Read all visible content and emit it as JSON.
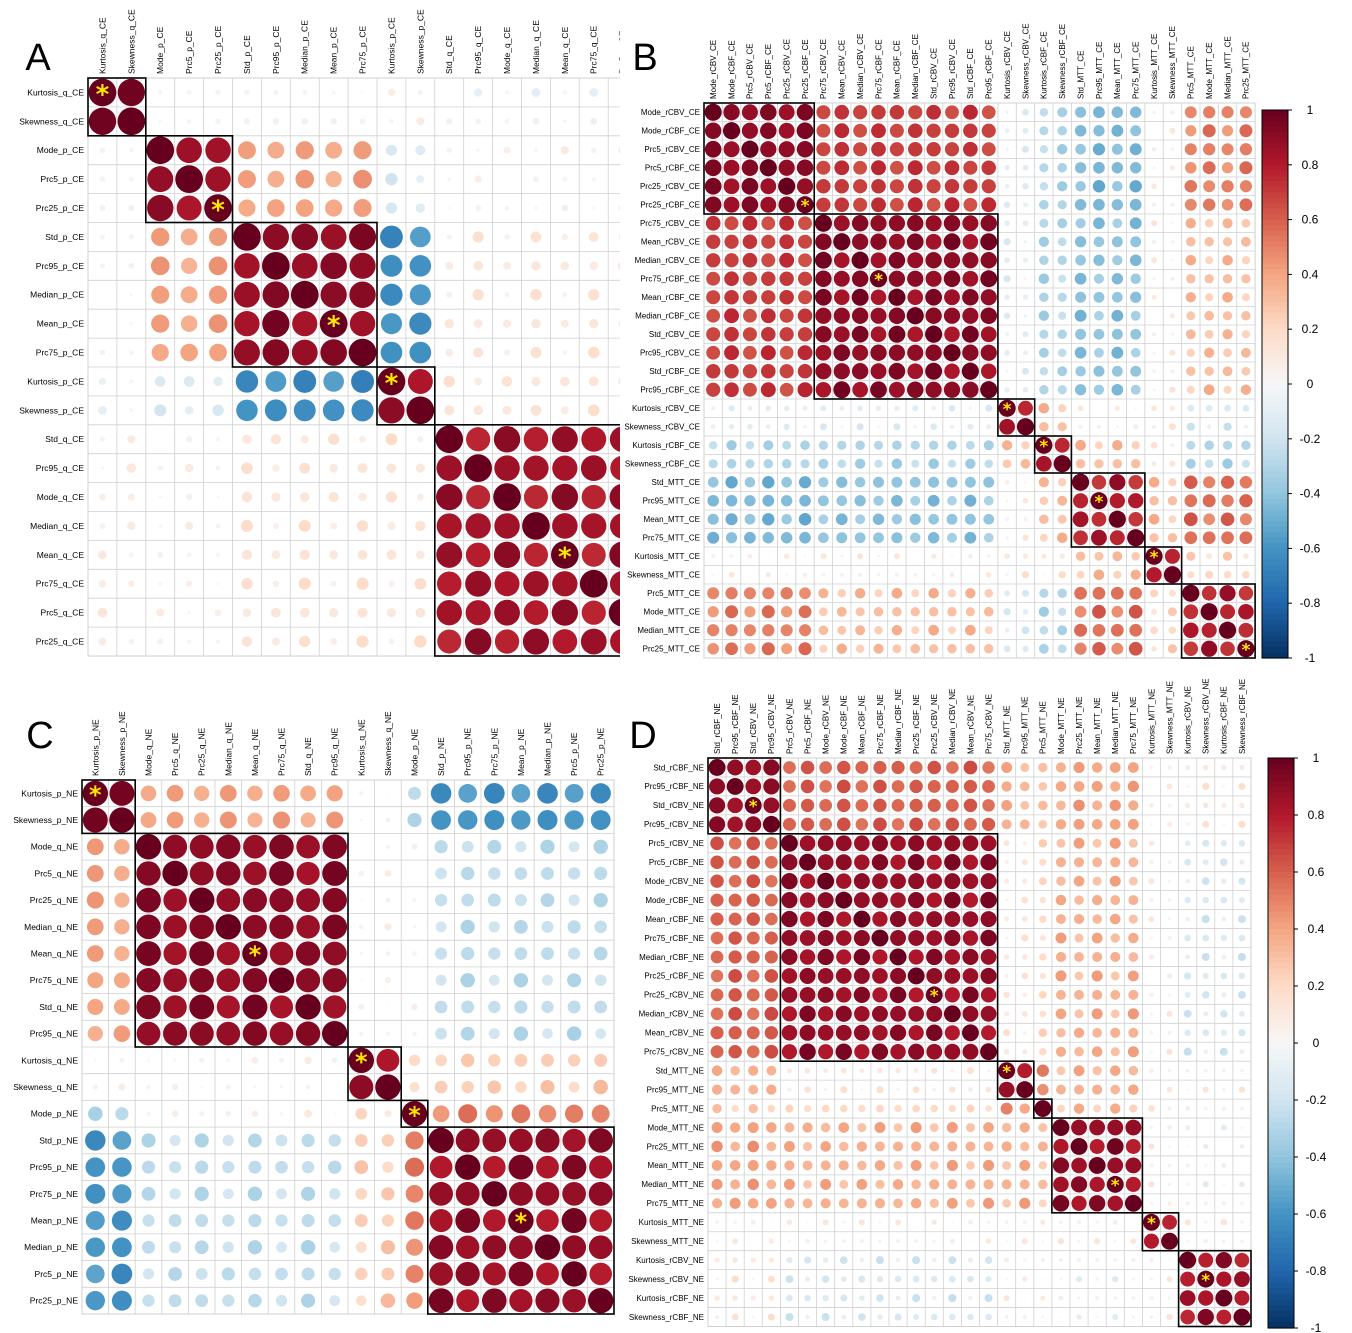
{
  "figure": {
    "colorbar": {
      "ticks": [
        "1",
        "0.8",
        "0.6",
        "0.4",
        "0.2",
        "0",
        "-0.2",
        "-0.4",
        "-0.6",
        "-0.8",
        "-1"
      ]
    },
    "colors": {
      "positive": "#67001f",
      "negative": "#053061",
      "box": "#000000",
      "grid": "#d0d0d0",
      "star": "#ffe600"
    },
    "star_glyph": "*"
  },
  "chart_data": [
    {
      "type": "heatmap",
      "panel": "A",
      "row_labels": [
        "Kurtosis_q_CE",
        "Skewness_q_CE",
        "Mode_p_CE",
        "Prc5_p_CE",
        "Prc25_p_CE",
        "Std_p_CE",
        "Prc95_p_CE",
        "Median_p_CE",
        "Mean_p_CE",
        "Prc75_p_CE",
        "Kurtosis_p_CE",
        "Skewness_p_CE",
        "Std_q_CE",
        "Prc95_q_CE",
        "Mode_q_CE",
        "Median_q_CE",
        "Mean_q_CE",
        "Prc75_q_CE",
        "Prc5_q_CE",
        "Prc25_q_CE"
      ],
      "col_labels": [
        "Kurtosis_q_CE",
        "Skewness_q_CE",
        "Mode_p_CE",
        "Prc5_p_CE",
        "Prc25_p_CE",
        "Std_p_CE",
        "Prc95_p_CE",
        "Median_p_CE",
        "Mean_p_CE",
        "Prc75_p_CE",
        "Kurtosis_p_CE",
        "Skewness_p_CE",
        "Std_q_CE",
        "Prc95_q_CE",
        "Mode_q_CE",
        "Median_q_CE",
        "Mean_q_CE",
        "Prc75_q_CE",
        "Prc5_q_CE",
        "Prc25_q_CE"
      ],
      "clusters": [
        [
          0,
          1
        ],
        [
          2,
          4
        ],
        [
          5,
          9
        ],
        [
          10,
          11
        ],
        [
          12,
          19
        ]
      ],
      "stars": [
        [
          0,
          0
        ],
        [
          4,
          4
        ],
        [
          8,
          8
        ],
        [
          10,
          10
        ],
        [
          16,
          16
        ]
      ],
      "block_values": [
        [
          0.96,
          0,
          0,
          0.06,
          -0.04
        ],
        [
          0,
          0.86,
          0.4,
          -0.14,
          0.03
        ],
        [
          0,
          0.4,
          0.9,
          -0.62,
          0.1
        ],
        [
          -0.04,
          -0.14,
          -0.62,
          0.88,
          0.12
        ],
        [
          0.06,
          0.03,
          0.12,
          0.12,
          0.84
        ]
      ],
      "value_range": [
        -1,
        1
      ]
    },
    {
      "type": "heatmap",
      "panel": "B",
      "row_labels": [
        "Mode_rCBV_CE",
        "Mode_rCBF_CE",
        "Prc5_rCBV_CE",
        "Prc5_rCBF_CE",
        "Prc25_rCBV_CE",
        "Prc25_rCBF_CE",
        "Prc75_rCBV_CE",
        "Mean_rCBV_CE",
        "Median_rCBV_CE",
        "Prc75_rCBF_CE",
        "Mean_rCBF_CE",
        "Median_rCBF_CE",
        "Std_rCBV_CE",
        "Prc95_rCBV_CE",
        "Std_rCBF_CE",
        "Prc95_rCBF_CE",
        "Kurtosis_rCBV_CE",
        "Skewness_rCBV_CE",
        "Kurtosis_rCBF_CE",
        "Skewness_rCBF_CE",
        "Std_MTT_CE",
        "Prc95_MTT_CE",
        "Mean_MTT_CE",
        "Prc75_MTT_CE",
        "Kurtosis_MTT_CE",
        "Skewness_MTT_CE",
        "Prc5_MTT_CE",
        "Mode_MTT_CE",
        "Median_MTT_CE",
        "Prc25_MTT_CE"
      ],
      "col_labels": [
        "Mode_rCBV_CE",
        "Mode_rCBF_CE",
        "Prc5_rCBV_CE",
        "Prc5_rCBF_CE",
        "Prc25_rCBV_CE",
        "Prc25_rCBF_CE",
        "Prc75_rCBV_CE",
        "Mean_rCBV_CE",
        "Median_rCBV_CE",
        "Prc75_rCBF_CE",
        "Mean_rCBF_CE",
        "Median_rCBF_CE",
        "Std_rCBV_CE",
        "Prc95_rCBV_CE",
        "Std_rCBF_CE",
        "Prc95_rCBF_CE",
        "Kurtosis_rCBV_CE",
        "Skewness_rCBV_CE",
        "Kurtosis_rCBF_CE",
        "Skewness_rCBF_CE",
        "Std_MTT_CE",
        "Prc95_MTT_CE",
        "Mean_MTT_CE",
        "Prc75_MTT_CE",
        "Kurtosis_MTT_CE",
        "Skewness_MTT_CE",
        "Prc5_MTT_CE",
        "Mode_MTT_CE",
        "Median_MTT_CE",
        "Prc25_MTT_CE"
      ],
      "clusters": [
        [
          0,
          5
        ],
        [
          6,
          15
        ],
        [
          16,
          17
        ],
        [
          18,
          19
        ],
        [
          20,
          23
        ],
        [
          24,
          25
        ],
        [
          26,
          29
        ]
      ],
      "stars": [
        [
          5,
          5
        ],
        [
          9,
          9
        ],
        [
          16,
          16
        ],
        [
          18,
          18
        ],
        [
          21,
          21
        ],
        [
          24,
          24
        ],
        [
          29,
          29
        ]
      ],
      "block_values": [
        [
          0.9,
          0.7,
          -0.1,
          -0.3,
          -0.45,
          0.05,
          0.5
        ],
        [
          0.7,
          0.9,
          -0.1,
          -0.3,
          -0.4,
          0.05,
          0.3
        ],
        [
          -0.1,
          -0.1,
          0.85,
          0.3,
          0.05,
          0.1,
          -0.15
        ],
        [
          -0.3,
          -0.3,
          0.3,
          0.85,
          0.3,
          0.1,
          -0.3
        ],
        [
          -0.45,
          -0.4,
          0.05,
          0.3,
          0.8,
          0.3,
          0.55
        ],
        [
          0.05,
          0.05,
          0.1,
          0.1,
          0.3,
          0.85,
          0.2
        ],
        [
          0.5,
          0.3,
          -0.15,
          -0.3,
          0.55,
          0.2,
          0.8
        ]
      ],
      "value_range": [
        -1,
        1
      ]
    },
    {
      "type": "heatmap",
      "panel": "C",
      "row_labels": [
        "Kurtosis_p_NE",
        "Skewness_p_NE",
        "Mode_q_NE",
        "Prc5_q_NE",
        "Prc25_q_NE",
        "Median_q_NE",
        "Mean_q_NE",
        "Prc75_q_NE",
        "Std_q_NE",
        "Prc95_q_NE",
        "Kurtosis_q_NE",
        "Skewness_q_NE",
        "Mode_p_NE",
        "Std_p_NE",
        "Prc95_p_NE",
        "Prc75_p_NE",
        "Mean_p_NE",
        "Median_p_NE",
        "Prc5_p_NE",
        "Prc25_p_NE"
      ],
      "col_labels": [
        "Kurtosis_p_NE",
        "Skewness_p_NE",
        "Mode_q_NE",
        "Prc5_q_NE",
        "Prc25_q_NE",
        "Median_q_NE",
        "Mean_q_NE",
        "Prc75_q_NE",
        "Std_q_NE",
        "Prc95_q_NE",
        "Kurtosis_q_NE",
        "Skewness_q_NE",
        "Mode_p_NE",
        "Std_p_NE",
        "Prc95_p_NE",
        "Prc75_p_NE",
        "Mean_p_NE",
        "Median_p_NE",
        "Prc5_p_NE",
        "Prc25_p_NE"
      ],
      "clusters": [
        [
          0,
          1
        ],
        [
          2,
          9
        ],
        [
          10,
          11
        ],
        [
          12,
          12
        ],
        [
          13,
          19
        ]
      ],
      "stars": [
        [
          0,
          0
        ],
        [
          6,
          6
        ],
        [
          10,
          10
        ],
        [
          12,
          12
        ],
        [
          16,
          16
        ]
      ],
      "block_values": [
        [
          0.95,
          0.4,
          0.02,
          -0.3,
          -0.6
        ],
        [
          0.4,
          0.9,
          0.02,
          0.05,
          -0.25
        ],
        [
          0.02,
          0.02,
          0.88,
          0.15,
          0.25
        ],
        [
          -0.3,
          0.05,
          0.15,
          1,
          0.5
        ],
        [
          -0.6,
          -0.25,
          0.25,
          0.5,
          0.88
        ]
      ],
      "value_range": [
        -1,
        1
      ]
    },
    {
      "type": "heatmap",
      "panel": "D",
      "row_labels": [
        "Std_rCBF_NE",
        "Prc95_rCBF_NE",
        "Std_rCBV_NE",
        "Prc95_rCBV_NE",
        "Prc5_rCBV_NE",
        "Prc5_rCBF_NE",
        "Mode_rCBV_NE",
        "Mode_rCBF_NE",
        "Mean_rCBF_NE",
        "Prc75_rCBF_NE",
        "Median_rCBF_NE",
        "Prc25_rCBF_NE",
        "Prc25_rCBV_NE",
        "Median_rCBV_NE",
        "Mean_rCBV_NE",
        "Prc75_rCBV_NE",
        "Std_MTT_NE",
        "Prc95_MTT_NE",
        "Prc5_MTT_NE",
        "Mode_MTT_NE",
        "Prc25_MTT_NE",
        "Mean_MTT_NE",
        "Median_MTT_NE",
        "Prc75_MTT_NE",
        "Kurtosis_MTT_NE",
        "Skewness_MTT_NE",
        "Kurtosis_rCBV_NE",
        "Skewness_rCBV_NE",
        "Kurtosis_rCBF_NE",
        "Skewness_rCBF_NE"
      ],
      "col_labels": [
        "Std_rCBF_NE",
        "Prc95_rCBF_NE",
        "Std_rCBV_NE",
        "Prc95_rCBV_NE",
        "Prc5_rCBV_NE",
        "Prc5_rCBF_NE",
        "Mode_rCBV_NE",
        "Mode_rCBF_NE",
        "Mean_rCBF_NE",
        "Prc75_rCBF_NE",
        "Median_rCBF_NE",
        "Prc25_rCBF_NE",
        "Prc25_rCBV_NE",
        "Median_rCBV_NE",
        "Mean_rCBV_NE",
        "Prc75_rCBV_NE",
        "Std_MTT_NE",
        "Prc95_MTT_NE",
        "Prc5_MTT_NE",
        "Mode_MTT_NE",
        "Prc25_MTT_NE",
        "Mean_MTT_NE",
        "Median_MTT_NE",
        "Prc75_MTT_NE",
        "Kurtosis_MTT_NE",
        "Skewness_MTT_NE",
        "Kurtosis_rCBV_NE",
        "Skewness_rCBV_NE",
        "Kurtosis_rCBF_NE",
        "Skewness_rCBF_NE"
      ],
      "clusters": [
        [
          0,
          3
        ],
        [
          4,
          15
        ],
        [
          16,
          17
        ],
        [
          18,
          18
        ],
        [
          19,
          23
        ],
        [
          24,
          25
        ],
        [
          26,
          29
        ]
      ],
      "stars": [
        [
          2,
          2
        ],
        [
          12,
          12
        ],
        [
          16,
          16
        ],
        [
          22,
          22
        ],
        [
          24,
          24
        ],
        [
          27,
          27
        ]
      ],
      "block_values": [
        [
          0.88,
          0.6,
          0.35,
          0.25,
          0.4,
          0.05,
          0.1
        ],
        [
          0.6,
          0.88,
          0.1,
          0.2,
          0.35,
          0.05,
          -0.15
        ],
        [
          0.35,
          0.1,
          0.88,
          0.45,
          0.35,
          0.05,
          0.05
        ],
        [
          0.25,
          0.2,
          0.45,
          1,
          0.3,
          0.1,
          0.05
        ],
        [
          0.4,
          0.35,
          0.35,
          0.3,
          0.88,
          0.05,
          -0.05
        ],
        [
          0.05,
          0.05,
          0.05,
          0.1,
          0.05,
          0.85,
          0.05
        ],
        [
          0.1,
          -0.15,
          0.05,
          0.05,
          -0.05,
          0.05,
          0.85
        ]
      ],
      "value_range": [
        -1,
        1
      ]
    }
  ]
}
